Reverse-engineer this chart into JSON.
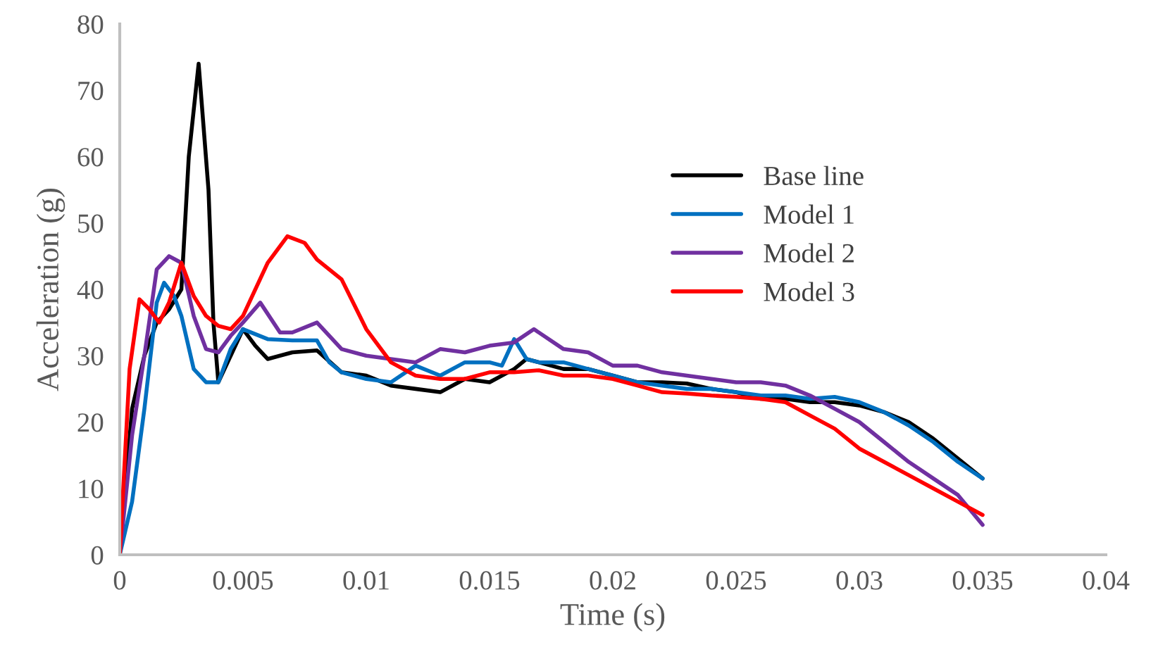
{
  "chart_data": {
    "type": "line",
    "xlabel": "Time (s)",
    "ylabel": "Acceleration (g)",
    "xlim": [
      0,
      0.04
    ],
    "xticks": [
      0,
      0.005,
      0.01,
      0.015,
      0.02,
      0.025,
      0.03,
      0.035,
      0.04
    ],
    "ylim": [
      0,
      80
    ],
    "yticks": [
      0,
      10,
      20,
      30,
      40,
      50,
      60,
      70,
      80
    ],
    "grid": false,
    "legend": "right",
    "marker": "none",
    "line_style": "solid",
    "series": [
      {
        "name": "Base line",
        "color": "#000000",
        "x": [
          0,
          0.0005,
          0.001,
          0.0015,
          0.002,
          0.0025,
          0.0028,
          0.0032,
          0.0036,
          0.0038,
          0.004,
          0.0045,
          0.005,
          0.0055,
          0.006,
          0.007,
          0.008,
          0.009,
          0.01,
          0.011,
          0.012,
          0.013,
          0.014,
          0.015,
          0.016,
          0.0165,
          0.017,
          0.018,
          0.019,
          0.02,
          0.021,
          0.022,
          0.023,
          0.024,
          0.025,
          0.026,
          0.027,
          0.028,
          0.029,
          0.03,
          0.031,
          0.032,
          0.033,
          0.034,
          0.035
        ],
        "values": [
          0,
          22,
          30,
          35,
          37,
          40,
          60,
          74,
          55,
          35,
          26,
          30,
          34,
          31.5,
          29.5,
          30.5,
          30.8,
          27.5,
          27,
          25.5,
          25,
          24.5,
          26.5,
          26,
          28,
          29.5,
          29,
          28,
          28,
          27,
          26,
          26,
          25.8,
          25,
          24.5,
          23.5,
          23.5,
          23,
          23,
          22.5,
          21.5,
          20,
          17.5,
          14.5,
          11.5
        ]
      },
      {
        "name": "Model 1",
        "color": "#0070c0",
        "x": [
          0,
          0.0005,
          0.001,
          0.0015,
          0.0018,
          0.0022,
          0.0025,
          0.003,
          0.0035,
          0.004,
          0.0045,
          0.005,
          0.006,
          0.007,
          0.008,
          0.0085,
          0.009,
          0.01,
          0.011,
          0.012,
          0.013,
          0.014,
          0.015,
          0.0155,
          0.016,
          0.0165,
          0.017,
          0.018,
          0.019,
          0.02,
          0.021,
          0.022,
          0.023,
          0.024,
          0.025,
          0.026,
          0.027,
          0.028,
          0.029,
          0.03,
          0.031,
          0.032,
          0.033,
          0.034,
          0.035
        ],
        "values": [
          0,
          8,
          22,
          38,
          41,
          39,
          36,
          28,
          26,
          26,
          31,
          34,
          32.5,
          32.3,
          32.3,
          29,
          27.5,
          26.5,
          26,
          28.5,
          27,
          29,
          29,
          28.5,
          32.5,
          29.5,
          29,
          29,
          28,
          27,
          26,
          25.5,
          25,
          25,
          24.5,
          24,
          24,
          23.5,
          23.8,
          23,
          21.5,
          19.5,
          17,
          14,
          11.5
        ]
      },
      {
        "name": "Model 2",
        "color": "#7030a0",
        "x": [
          0,
          0.0005,
          0.001,
          0.0015,
          0.002,
          0.0025,
          0.003,
          0.0035,
          0.004,
          0.0045,
          0.005,
          0.0057,
          0.0065,
          0.007,
          0.008,
          0.009,
          0.01,
          0.011,
          0.012,
          0.013,
          0.014,
          0.015,
          0.016,
          0.0168,
          0.018,
          0.019,
          0.02,
          0.021,
          0.022,
          0.023,
          0.024,
          0.025,
          0.026,
          0.027,
          0.028,
          0.029,
          0.03,
          0.031,
          0.032,
          0.033,
          0.034,
          0.035
        ],
        "values": [
          0,
          18,
          30,
          43,
          45,
          44,
          36,
          31,
          30.5,
          33,
          35,
          38,
          33.5,
          33.5,
          35,
          31,
          30,
          29.5,
          29,
          31,
          30.5,
          31.5,
          32,
          34,
          31,
          30.5,
          28.5,
          28.5,
          27.5,
          27,
          26.5,
          26,
          26,
          25.5,
          24,
          22,
          20,
          17,
          14,
          11.5,
          9,
          4.5
        ]
      },
      {
        "name": "Model 3",
        "color": "#ff0000",
        "x": [
          0,
          0.0004,
          0.0008,
          0.0012,
          0.0016,
          0.002,
          0.0025,
          0.003,
          0.0035,
          0.004,
          0.0045,
          0.005,
          0.006,
          0.0068,
          0.0075,
          0.008,
          0.009,
          0.01,
          0.011,
          0.012,
          0.013,
          0.014,
          0.015,
          0.016,
          0.017,
          0.018,
          0.019,
          0.02,
          0.021,
          0.022,
          0.023,
          0.024,
          0.025,
          0.026,
          0.027,
          0.028,
          0.029,
          0.03,
          0.031,
          0.032,
          0.033,
          0.034,
          0.035
        ],
        "values": [
          0,
          28,
          38.5,
          37,
          35,
          38,
          44,
          39,
          36,
          34.5,
          34,
          36,
          44,
          48,
          47,
          44.5,
          41.5,
          34,
          29,
          27,
          26.5,
          26.5,
          27.5,
          27.5,
          27.8,
          27,
          27,
          26.5,
          25.5,
          24.5,
          24.3,
          24,
          23.8,
          23.5,
          23,
          21,
          19,
          16,
          14,
          12,
          10,
          8,
          6
        ]
      }
    ]
  }
}
